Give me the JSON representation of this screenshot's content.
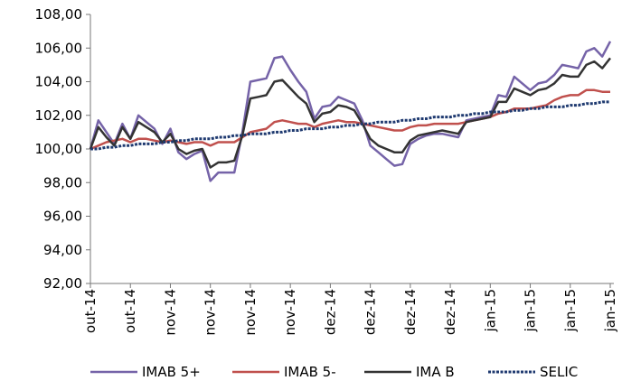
{
  "chart_data": {
    "type": "line",
    "categories": [
      "out-14",
      null,
      null,
      null,
      null,
      "out-14",
      null,
      null,
      null,
      null,
      "nov-14",
      null,
      null,
      null,
      null,
      "nov-14",
      null,
      null,
      null,
      null,
      "nov-14",
      null,
      null,
      null,
      null,
      "nov-14",
      null,
      null,
      null,
      null,
      "dez-14",
      null,
      null,
      null,
      null,
      "dez-14",
      null,
      null,
      null,
      null,
      "dez-14",
      null,
      null,
      null,
      null,
      "dez-14",
      null,
      null,
      null,
      null,
      "jan-15",
      null,
      null,
      null,
      null,
      "jan-15",
      null,
      null,
      null,
      null,
      "jan-15",
      null,
      null,
      null,
      null,
      "jan-15"
    ],
    "series": [
      {
        "name": "IMAB 5+",
        "color": "#7563a8",
        "values": [
          100.0,
          101.7,
          101.0,
          100.3,
          101.5,
          100.6,
          102.0,
          101.6,
          101.2,
          100.3,
          101.2,
          99.8,
          99.4,
          99.7,
          99.9,
          98.1,
          98.6,
          98.6,
          98.6,
          101.0,
          104.0,
          104.1,
          104.2,
          105.4,
          105.5,
          104.7,
          104.0,
          103.4,
          101.8,
          102.5,
          102.6,
          103.1,
          102.9,
          102.7,
          101.7,
          100.2,
          99.8,
          99.4,
          99.0,
          99.1,
          100.3,
          100.6,
          100.8,
          100.9,
          100.9,
          100.8,
          100.7,
          101.7,
          101.8,
          101.9,
          102.0,
          103.2,
          103.1,
          104.3,
          103.9,
          103.5,
          103.9,
          104.0,
          104.4,
          105.0,
          104.9,
          104.8,
          105.8,
          106.0,
          105.5,
          106.4
        ]
      },
      {
        "name": "IMAB 5-",
        "color": "#c0504d",
        "values": [
          100.0,
          100.2,
          100.4,
          100.5,
          100.6,
          100.4,
          100.6,
          100.6,
          100.5,
          100.4,
          100.5,
          100.4,
          100.3,
          100.4,
          100.4,
          100.2,
          100.4,
          100.4,
          100.4,
          100.7,
          101.0,
          101.1,
          101.2,
          101.6,
          101.7,
          101.6,
          101.5,
          101.5,
          101.3,
          101.5,
          101.6,
          101.7,
          101.6,
          101.6,
          101.5,
          101.4,
          101.3,
          101.2,
          101.1,
          101.1,
          101.3,
          101.4,
          101.4,
          101.5,
          101.5,
          101.5,
          101.5,
          101.6,
          101.7,
          101.8,
          101.9,
          102.1,
          102.2,
          102.4,
          102.4,
          102.4,
          102.5,
          102.6,
          102.9,
          103.1,
          103.2,
          103.2,
          103.5,
          103.5,
          103.4,
          103.4
        ]
      },
      {
        "name": "IMA B",
        "color": "#333333",
        "values": [
          100.0,
          101.3,
          100.7,
          100.2,
          101.3,
          100.6,
          101.6,
          101.3,
          101.0,
          100.4,
          100.9,
          100.0,
          99.7,
          99.9,
          100.0,
          98.9,
          99.2,
          99.2,
          99.3,
          100.8,
          103.0,
          103.1,
          103.2,
          104.0,
          104.1,
          103.6,
          103.1,
          102.7,
          101.6,
          102.1,
          102.2,
          102.6,
          102.5,
          102.3,
          101.5,
          100.6,
          100.2,
          100.0,
          99.8,
          99.8,
          100.5,
          100.8,
          100.9,
          101.0,
          101.1,
          101.0,
          100.9,
          101.6,
          101.7,
          101.8,
          101.9,
          102.8,
          102.8,
          103.6,
          103.4,
          103.2,
          103.5,
          103.6,
          103.9,
          104.4,
          104.3,
          104.3,
          105.0,
          105.2,
          104.8,
          105.4
        ]
      },
      {
        "name": "SELIC",
        "color": "#1f3a70",
        "dashed": true,
        "values": [
          100.0,
          100.0,
          100.1,
          100.1,
          100.2,
          100.2,
          100.3,
          100.3,
          100.3,
          100.4,
          100.4,
          100.5,
          100.5,
          100.6,
          100.6,
          100.6,
          100.7,
          100.7,
          100.8,
          100.8,
          100.9,
          100.9,
          100.9,
          101.0,
          101.0,
          101.1,
          101.1,
          101.2,
          101.2,
          101.2,
          101.3,
          101.3,
          101.4,
          101.4,
          101.5,
          101.5,
          101.6,
          101.6,
          101.6,
          101.7,
          101.7,
          101.8,
          101.8,
          101.9,
          101.9,
          101.9,
          102.0,
          102.0,
          102.1,
          102.1,
          102.2,
          102.2,
          102.2,
          102.3,
          102.3,
          102.4,
          102.4,
          102.5,
          102.5,
          102.5,
          102.6,
          102.6,
          102.7,
          102.7,
          102.8,
          102.8
        ]
      }
    ],
    "ylim": [
      92,
      108
    ],
    "yticks": [
      {
        "value": 92,
        "label": "92,00"
      },
      {
        "value": 94,
        "label": "94,00"
      },
      {
        "value": 96,
        "label": "96,00"
      },
      {
        "value": 98,
        "label": "98,00"
      },
      {
        "value": 100,
        "label": "100,00"
      },
      {
        "value": 102,
        "label": "102,00"
      },
      {
        "value": 104,
        "label": "104,00"
      },
      {
        "value": 106,
        "label": "106,00"
      },
      {
        "value": 108,
        "label": "108,00"
      }
    ],
    "grid": false,
    "legend": "bottom"
  }
}
